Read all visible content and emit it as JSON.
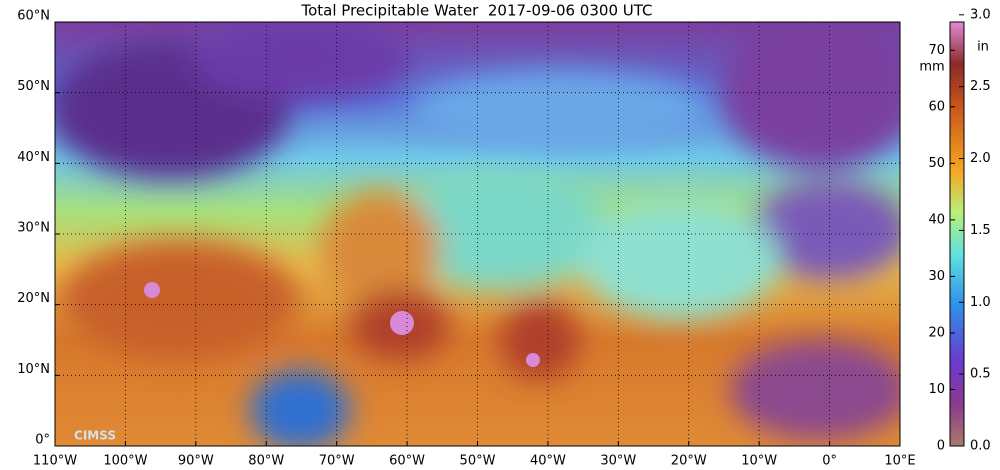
{
  "title": "Total Precipitable Water  2017-09-06 0300 UTC",
  "map": {
    "xlim": [
      -110,
      10
    ],
    "xticks": [
      {
        "value": -110,
        "label": "110°W"
      },
      {
        "value": -100,
        "label": "100°W"
      },
      {
        "value": -90,
        "label": "90°W"
      },
      {
        "value": -80,
        "label": "80°W"
      },
      {
        "value": -70,
        "label": "70°W"
      },
      {
        "value": -60,
        "label": "60°W"
      },
      {
        "value": -50,
        "label": "50°W"
      },
      {
        "value": -40,
        "label": "40°W"
      },
      {
        "value": -30,
        "label": "30°W"
      },
      {
        "value": -20,
        "label": "20°W"
      },
      {
        "value": -10,
        "label": "10°W"
      },
      {
        "value": 0,
        "label": "0°"
      },
      {
        "value": 10,
        "label": "10°E"
      }
    ],
    "ylim": [
      0,
      60
    ],
    "yticks": [
      {
        "value": 0,
        "label": "0°"
      },
      {
        "value": 10,
        "label": "10°N"
      },
      {
        "value": 20,
        "label": "20°N"
      },
      {
        "value": 30,
        "label": "30°N"
      },
      {
        "value": 40,
        "label": "40°N"
      },
      {
        "value": 50,
        "label": "50°N"
      },
      {
        "value": 60,
        "label": "60°N"
      }
    ],
    "grid": true
  },
  "colorbar": {
    "mm_unit": "mm",
    "in_unit": "in",
    "mm_lim": [
      0,
      75
    ],
    "mm_ticks": [
      0,
      10,
      20,
      30,
      40,
      50,
      60,
      70
    ],
    "in_lim": [
      0,
      2.95
    ],
    "in_ticks": [
      {
        "value": 0,
        "label": "0.0"
      },
      0.5,
      {
        "value": 1,
        "label": "1.0"
      },
      1.5,
      {
        "value": 2,
        "label": "2.0"
      },
      2.5,
      {
        "value": 3,
        "label": "3.0"
      }
    ]
  },
  "logo": "CIMSS"
}
